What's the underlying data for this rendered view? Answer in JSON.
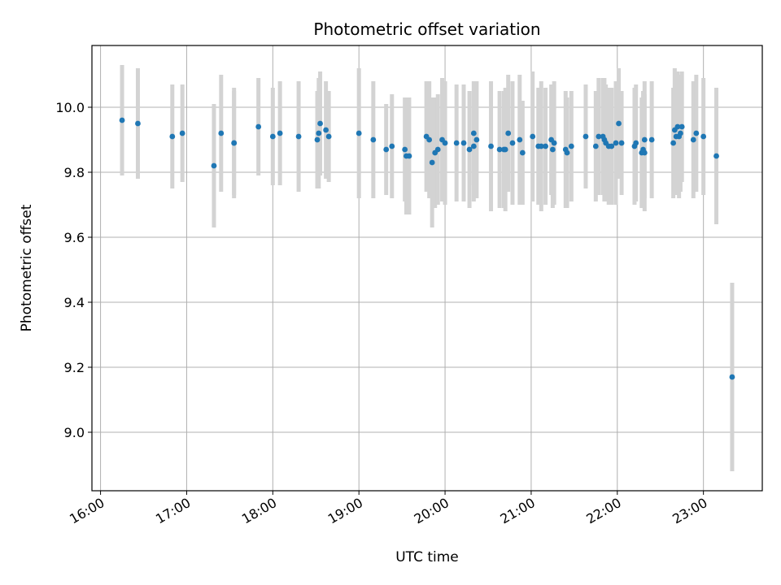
{
  "chart_data": {
    "type": "scatter",
    "title": "Photometric offset variation",
    "xlabel": "UTC time",
    "ylabel": "Photometric offset",
    "x_ticks": [
      "16:00",
      "17:00",
      "18:00",
      "19:00",
      "20:00",
      "21:00",
      "22:00",
      "23:00"
    ],
    "y_ticks": [
      "9.0",
      "9.2",
      "9.4",
      "9.6",
      "9.8",
      "10.0"
    ],
    "xlim": [
      "15:54",
      "23:41"
    ],
    "ylim": [
      8.82,
      10.19
    ],
    "grid": true,
    "marker_color": "#1f77b4",
    "errorbar_color": "#d3d3d3",
    "series": [
      {
        "x": [
          "16:15",
          "16:26",
          "16:50",
          "16:57",
          "17:19",
          "17:24",
          "17:33",
          "17:33",
          "17:50",
          "18:00",
          "18:05",
          "18:18",
          "18:31",
          "18:32",
          "18:33",
          "18:37",
          "18:39",
          "19:00",
          "19:10",
          "19:19",
          "19:23",
          "19:32",
          "19:33",
          "19:35",
          "19:47",
          "19:49",
          "19:51",
          "19:53",
          "19:55",
          "19:58",
          "20:00",
          "20:08",
          "20:13",
          "20:17",
          "20:20",
          "20:20",
          "20:22",
          "20:32",
          "20:38",
          "20:41",
          "20:42",
          "20:44",
          "20:47",
          "20:52",
          "20:54",
          "21:01",
          "21:05",
          "21:07",
          "21:10",
          "21:14",
          "21:15",
          "21:16",
          "21:24",
          "21:25",
          "21:28",
          "21:38",
          "21:45",
          "21:47",
          "21:50",
          "21:51",
          "21:52",
          "21:54",
          "21:56",
          "21:59",
          "22:01",
          "22:03",
          "22:12",
          "22:13",
          "22:17",
          "22:18",
          "22:19",
          "22:19",
          "22:24",
          "22:39",
          "22:40",
          "22:41",
          "22:42",
          "22:43",
          "22:44",
          "22:45",
          "22:53",
          "22:55",
          "23:00",
          "23:09",
          "23:20"
        ],
        "y": [
          9.96,
          9.95,
          9.91,
          9.92,
          9.82,
          9.92,
          9.89,
          9.89,
          9.94,
          9.91,
          9.92,
          9.91,
          9.9,
          9.92,
          9.95,
          9.93,
          9.91,
          9.92,
          9.9,
          9.87,
          9.88,
          9.87,
          9.85,
          9.85,
          9.91,
          9.9,
          9.83,
          9.86,
          9.87,
          9.9,
          9.89,
          9.89,
          9.89,
          9.87,
          9.92,
          9.88,
          9.9,
          9.88,
          9.87,
          9.87,
          9.87,
          9.92,
          9.89,
          9.9,
          9.86,
          9.91,
          9.88,
          9.88,
          9.88,
          9.9,
          9.87,
          9.89,
          9.87,
          9.86,
          9.88,
          9.91,
          9.88,
          9.91,
          9.91,
          9.9,
          9.89,
          9.88,
          9.88,
          9.89,
          9.95,
          9.89,
          9.88,
          9.89,
          9.86,
          9.87,
          9.9,
          9.86,
          9.9,
          9.89,
          9.93,
          9.91,
          9.94,
          9.91,
          9.92,
          9.94,
          9.9,
          9.92,
          9.91,
          9.85,
          9.17
        ],
        "yerr": [
          0.17,
          0.17,
          0.16,
          0.15,
          0.19,
          0.18,
          0.17,
          0.16,
          0.15,
          0.15,
          0.16,
          0.17,
          0.15,
          0.17,
          0.16,
          0.15,
          0.14,
          0.2,
          0.18,
          0.14,
          0.16,
          0.16,
          0.18,
          0.18,
          0.17,
          0.18,
          0.2,
          0.17,
          0.17,
          0.19,
          0.19,
          0.18,
          0.18,
          0.18,
          0.16,
          0.17,
          0.18,
          0.2,
          0.18,
          0.18,
          0.19,
          0.18,
          0.19,
          0.2,
          0.16,
          0.2,
          0.18,
          0.2,
          0.18,
          0.17,
          0.18,
          0.19,
          0.18,
          0.17,
          0.17,
          0.16,
          0.17,
          0.18,
          0.18,
          0.19,
          0.18,
          0.18,
          0.18,
          0.19,
          0.17,
          0.16,
          0.18,
          0.18,
          0.17,
          0.18,
          0.18,
          0.18,
          0.18,
          0.17,
          0.19,
          0.18,
          0.17,
          0.19,
          0.18,
          0.17,
          0.18,
          0.18,
          0.18,
          0.21,
          0.29
        ]
      }
    ]
  }
}
